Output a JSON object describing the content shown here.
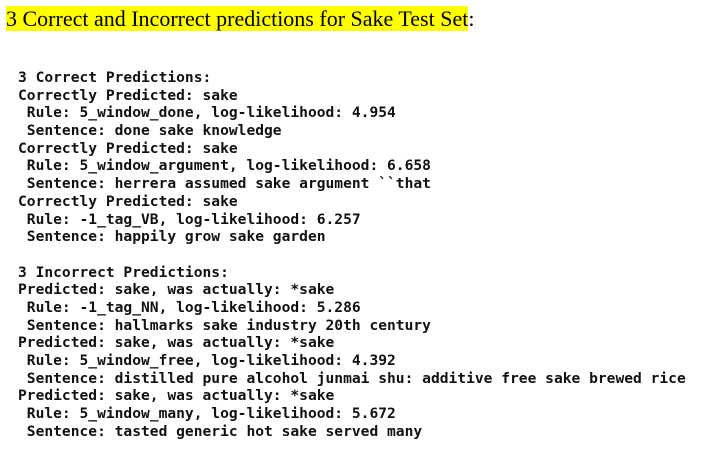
{
  "header": {
    "title": "3 Correct and Incorrect predictions for Sake Test Set",
    "title_end": ":"
  },
  "sections": [
    {
      "heading": "3 Correct Predictions:",
      "lines": [
        "Correctly Predicted: sake",
        " Rule: 5_window_done, log-likelihood: 4.954",
        " Sentence: done sake knowledge",
        "Correctly Predicted: sake",
        " Rule: 5_window_argument, log-likelihood: 6.658",
        " Sentence: herrera assumed sake argument ``that",
        "Correctly Predicted: sake",
        " Rule: -1_tag_VB, log-likelihood: 6.257",
        " Sentence: happily grow sake garden"
      ]
    },
    {
      "heading": "3 Incorrect Predictions:",
      "lines": [
        "Predicted: sake, was actually: *sake",
        " Rule: -1_tag_NN, log-likelihood: 5.286",
        " Sentence: hallmarks sake industry 20th century",
        "Predicted: sake, was actually: *sake",
        " Rule: 5_window_free, log-likelihood: 4.392",
        " Sentence: distilled pure alcohol junmai shu: additive free sake brewed rice",
        "Predicted: sake, was actually: *sake",
        " Rule: 5_window_many, log-likelihood: 5.672",
        " Sentence: tasted generic hot sake served many"
      ]
    }
  ]
}
